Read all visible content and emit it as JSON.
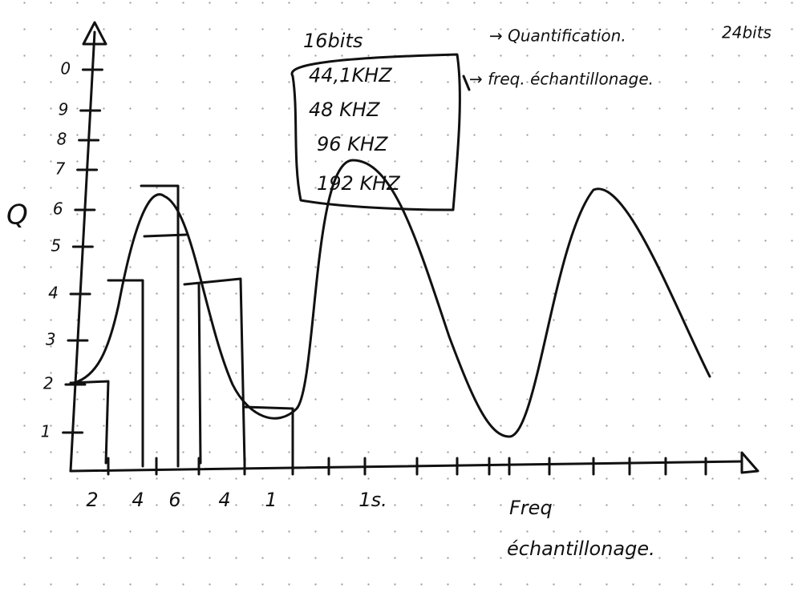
{
  "axis": {
    "y_label": "Q",
    "y_ticks": [
      "1",
      "2",
      "3",
      "4",
      "5",
      "6",
      "7",
      "8",
      "9",
      "0"
    ],
    "x_labels": [
      "2",
      "4",
      "6",
      "4",
      "1",
      "1s."
    ],
    "x_title": [
      "Freq",
      "échantillonage."
    ]
  },
  "box": {
    "header": "16bits",
    "rates": [
      "44,1KHZ",
      "48 KHZ",
      "96 KHZ",
      "192 KHZ"
    ]
  },
  "notes": {
    "quantification": "→ Quantification.",
    "bits_alt": "24bits",
    "freq": "→ freq. échantillonage."
  }
}
